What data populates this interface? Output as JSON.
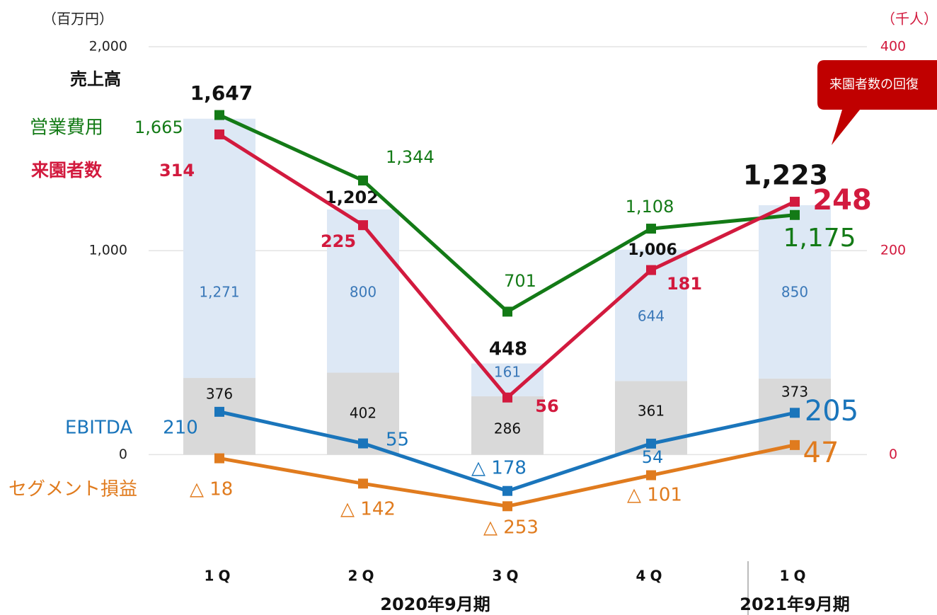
{
  "chart_data": {
    "type": "bar_line",
    "y_unit": "（百万円）",
    "y2_unit": "（千人）",
    "categories": [
      "1Q",
      "2Q",
      "3Q",
      "4Q",
      "1Q"
    ],
    "groups": [
      {
        "label": "2020年9月期",
        "span": [
          0,
          3
        ]
      },
      {
        "label": "2021年9月期",
        "span": [
          4,
          4
        ]
      }
    ],
    "ylim": [
      -500,
      2000
    ],
    "yticks": [
      0,
      {
        "value": 1000,
        "label": "1,000"
      },
      {
        "value": 2000,
        "label": "2,000"
      }
    ],
    "y2lim": [
      -100,
      400
    ],
    "y2ticks": [
      0,
      200,
      400
    ],
    "grid": true,
    "stacks": [
      {
        "color": "#d9d9d9",
        "label_color": "#111111",
        "values": [
          376,
          402,
          286,
          361,
          373
        ]
      },
      {
        "color": "#dde8f5",
        "label_color": "#3a78b8",
        "values": [
          1271,
          800,
          161,
          644,
          850
        ],
        "value_labels": [
          "1,271",
          "800",
          "161",
          "644",
          "850"
        ]
      }
    ],
    "totals": {
      "name": "売上高",
      "color": "#111111",
      "values": [
        1647,
        1202,
        448,
        1006,
        1223
      ],
      "value_labels": [
        "1,647",
        "1,202",
        "448",
        "1,006",
        "1,223"
      ]
    },
    "series": [
      {
        "name": "営業費用",
        "color": "#137a16",
        "values": [
          1665,
          1344,
          701,
          1108,
          1175
        ],
        "value_labels": [
          "1,665",
          "1,344",
          "701",
          "1,108",
          "1,175"
        ]
      },
      {
        "name": "来園者数",
        "color": "#d21a3e",
        "axis": "y2",
        "values": [
          314,
          225,
          56,
          181,
          248
        ]
      },
      {
        "name": "EBITDA",
        "color": "#1a75bb",
        "values": [
          210,
          55,
          -178,
          54,
          205
        ],
        "value_labels": [
          "210",
          "55",
          "△ 178",
          "54",
          "205"
        ]
      },
      {
        "name": "セグメント損益",
        "color": "#e07b1e",
        "values": [
          -18,
          -142,
          -253,
          -101,
          47
        ],
        "value_labels": [
          "△ 18",
          "△ 142",
          "△ 253",
          "△ 101",
          "47"
        ]
      }
    ],
    "annotation": "来園者数の回復"
  }
}
